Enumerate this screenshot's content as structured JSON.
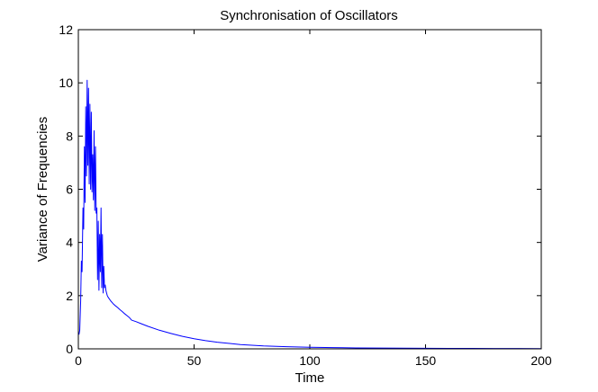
{
  "chart_data": {
    "type": "line",
    "title": "Synchronisation of Oscillators",
    "xlabel": "Time",
    "ylabel": "Variance of Frequencies",
    "xlim": [
      0,
      200
    ],
    "ylim": [
      0,
      12
    ],
    "xticks": [
      0,
      50,
      100,
      150,
      200
    ],
    "yticks": [
      0,
      2,
      4,
      6,
      8,
      10,
      12
    ],
    "grid": false,
    "series": [
      {
        "color": "#0000ff",
        "x": [
          0,
          0.3,
          0.6,
          1.0,
          1.3,
          1.6,
          2.0,
          2.3,
          2.6,
          2.9,
          3.2,
          3.5,
          3.8,
          4.1,
          4.4,
          4.7,
          5.0,
          5.3,
          5.6,
          5.9,
          6.2,
          6.5,
          6.8,
          7.1,
          7.4,
          7.7,
          8.0,
          8.3,
          8.6,
          8.9,
          9.2,
          9.5,
          9.8,
          10.1,
          10.4,
          10.7,
          11.0,
          11.3,
          11.6,
          11.9,
          12.2,
          12.5,
          12.8,
          13.2,
          14,
          15,
          16,
          17,
          18,
          19,
          20,
          21,
          22,
          23,
          24,
          25,
          27,
          30,
          35,
          40,
          45,
          50,
          55,
          60,
          70,
          80,
          90,
          100,
          110,
          120,
          130,
          140,
          150,
          160,
          170,
          180,
          190,
          200
        ],
        "y": [
          0.6,
          0.55,
          0.7,
          1.8,
          3.3,
          2.9,
          5.3,
          4.5,
          7.6,
          5.5,
          9.1,
          6.5,
          10.1,
          6.9,
          9.8,
          6.2,
          9.2,
          6.0,
          8.9,
          5.9,
          7.3,
          5.6,
          8.2,
          5.2,
          7.6,
          5.1,
          5.3,
          2.6,
          4.8,
          2.2,
          4.3,
          2.9,
          5.3,
          2.3,
          4.3,
          2.1,
          3.1,
          2.3,
          2.4,
          2.2,
          2.1,
          2.0,
          1.95,
          1.9,
          1.8,
          1.7,
          1.62,
          1.55,
          1.47,
          1.4,
          1.32,
          1.25,
          1.18,
          1.08,
          1.05,
          1.02,
          0.95,
          0.85,
          0.7,
          0.58,
          0.47,
          0.38,
          0.31,
          0.25,
          0.16,
          0.11,
          0.08,
          0.06,
          0.045,
          0.035,
          0.03,
          0.025,
          0.02,
          0.017,
          0.015,
          0.013,
          0.011,
          0.01
        ]
      }
    ]
  }
}
